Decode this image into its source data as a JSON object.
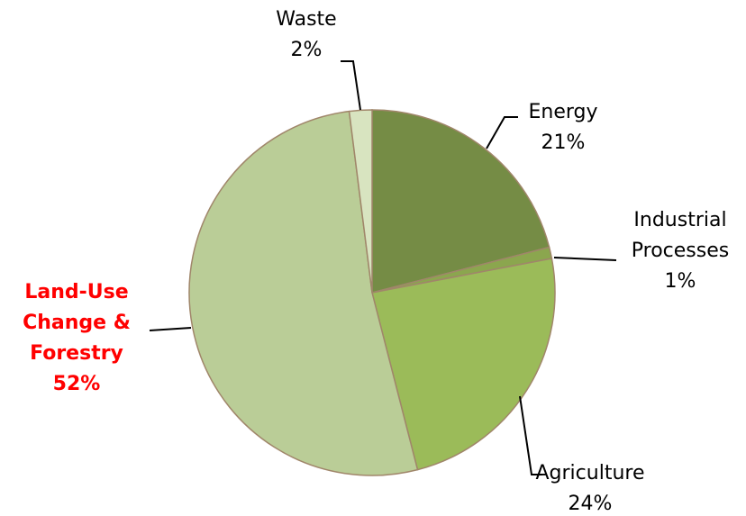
{
  "chart_data": {
    "type": "pie",
    "categories": [
      "Energy",
      "Industrial Processes",
      "Agriculture",
      "Land-Use Change & Forestry",
      "Waste"
    ],
    "values": [
      21,
      1,
      24,
      52,
      2
    ],
    "value_labels": [
      "21%",
      "1%",
      "24%",
      "52%",
      "2%"
    ],
    "colors": [
      "#758c45",
      "#8ba64e",
      "#9bbb59",
      "#bacd97",
      "#d8e4c0"
    ]
  }
}
